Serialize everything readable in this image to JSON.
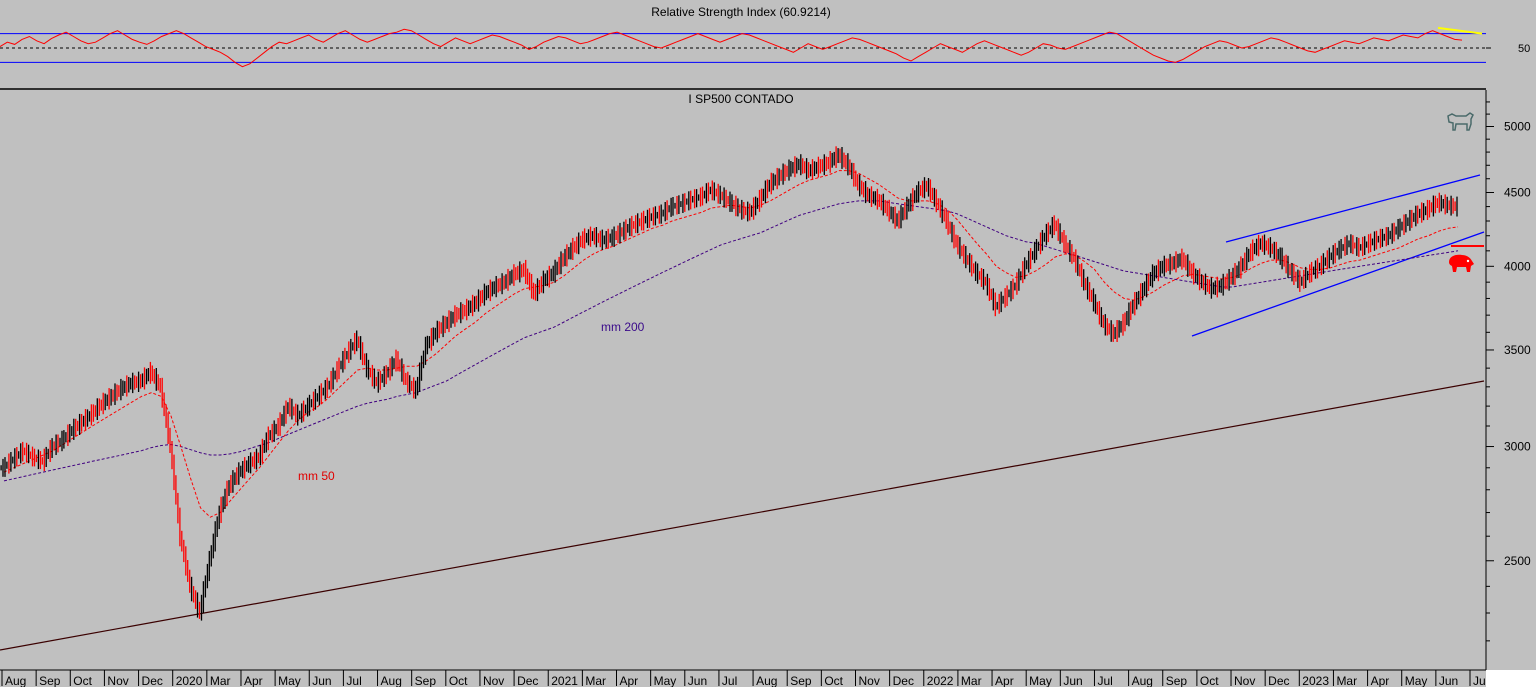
{
  "chart_data": [
    {
      "type": "line",
      "panel": "rsi",
      "title": "Relative Strength Index (60.9214)",
      "ylim": [
        0,
        100
      ],
      "reference_lines": [
        70,
        50,
        30
      ],
      "y_ticks": [
        "50"
      ],
      "series": [
        {
          "color": "#ff0000",
          "values": [
            52,
            58,
            55,
            62,
            66,
            60,
            56,
            63,
            68,
            72,
            66,
            60,
            56,
            58,
            64,
            70,
            74,
            68,
            62,
            58,
            55,
            60,
            66,
            70,
            74,
            70,
            64,
            58,
            52,
            48,
            44,
            38,
            30,
            24,
            28,
            36,
            44,
            52,
            58,
            56,
            60,
            64,
            68,
            62,
            58,
            64,
            70,
            74,
            68,
            62,
            58,
            62,
            66,
            70,
            72,
            76,
            74,
            68,
            62,
            56,
            52,
            58,
            64,
            60,
            56,
            60,
            64,
            68,
            66,
            62,
            58,
            54,
            48,
            52,
            58,
            62,
            66,
            64,
            60,
            56,
            58,
            62,
            66,
            70,
            72,
            68,
            64,
            60,
            56,
            52,
            50,
            54,
            58,
            62,
            66,
            70,
            66,
            62,
            58,
            62,
            66,
            70,
            68,
            64,
            60,
            56,
            52,
            48,
            44,
            50,
            56,
            52,
            48,
            52,
            56,
            60,
            64,
            62,
            58,
            54,
            50,
            46,
            42,
            36,
            32,
            38,
            44,
            50,
            56,
            52,
            48,
            44,
            50,
            56,
            60,
            56,
            52,
            48,
            44,
            40,
            44,
            50,
            56,
            54,
            50,
            48,
            52,
            56,
            60,
            64,
            68,
            72,
            70,
            64,
            58,
            52,
            46,
            40,
            36,
            32,
            30,
            34,
            40,
            46,
            52,
            56,
            60,
            58,
            54,
            50,
            52,
            56,
            60,
            64,
            62,
            58,
            54,
            50,
            46,
            44,
            48,
            52,
            56,
            60,
            58,
            56,
            60,
            64,
            62,
            60,
            64,
            68,
            66,
            64,
            70,
            74,
            70,
            66,
            62,
            61
          ]
        },
        {
          "name": "",
          "color": "#ffff00",
          "values": [
            78,
            70
          ]
        }
      ]
    },
    {
      "type": "line",
      "panel": "price",
      "title": "I SP500 CONTADO",
      "scale": "log",
      "ylim": [
        2100,
        5300
      ],
      "y_ticks": [
        5000,
        4500,
        4000,
        3500,
        3000,
        2500
      ],
      "x_tick_labels": [
        "Aug",
        "Sep",
        "Oct",
        "Nov",
        "Dec",
        "2020",
        "Mar",
        "Apr",
        "May",
        "Jun",
        "Jul",
        "Aug",
        "Sep",
        "Oct",
        "Nov",
        "Dec",
        "2021",
        "Mar",
        "Apr",
        "May",
        "Jun",
        "Jul",
        "Aug",
        "Sep",
        "Oct",
        "Nov",
        "Dec",
        "2022",
        "Mar",
        "Apr",
        "May",
        "Jun",
        "Jul",
        "Aug",
        "Sep",
        "Oct",
        "Nov",
        "Dec",
        "2023",
        "Mar",
        "Apr",
        "May",
        "Jun",
        "Jul"
      ],
      "annotations": [
        "mm 50",
        "mm 200"
      ],
      "series": [
        {
          "kind": "price",
          "color": "#000000",
          "down_color": "#ff0000",
          "values": [
            2900,
            2940,
            2980,
            2950,
            2930,
            3000,
            3030,
            3080,
            3120,
            3160,
            3210,
            3250,
            3290,
            3320,
            3330,
            3380,
            3300,
            3000,
            2600,
            2400,
            2300,
            2500,
            2700,
            2820,
            2880,
            2920,
            2950,
            3050,
            3100,
            3200,
            3150,
            3200,
            3250,
            3300,
            3390,
            3480,
            3560,
            3400,
            3320,
            3370,
            3450,
            3330,
            3280,
            3520,
            3600,
            3650,
            3700,
            3730,
            3770,
            3830,
            3870,
            3900,
            3950,
            3980,
            3830,
            3910,
            3960,
            4050,
            4120,
            4180,
            4200,
            4170,
            4190,
            4230,
            4270,
            4300,
            4330,
            4350,
            4400,
            4420,
            4450,
            4470,
            4520,
            4480,
            4430,
            4380,
            4360,
            4450,
            4560,
            4620,
            4670,
            4710,
            4660,
            4690,
            4720,
            4780,
            4700,
            4560,
            4480,
            4450,
            4380,
            4300,
            4400,
            4500,
            4550,
            4430,
            4300,
            4150,
            4050,
            3960,
            3900,
            3750,
            3810,
            3880,
            4000,
            4100,
            4200,
            4280,
            4150,
            4050,
            3900,
            3780,
            3650,
            3590,
            3650,
            3760,
            3850,
            3950,
            4000,
            4020,
            4050,
            3960,
            3900,
            3860,
            3880,
            3930,
            4000,
            4100,
            4150,
            4120,
            4060,
            3970,
            3900,
            3960,
            4000,
            4060,
            4110,
            4150,
            4120,
            4150,
            4180,
            4200,
            4250,
            4300,
            4350,
            4380,
            4430,
            4410,
            4400
          ]
        },
        {
          "name": "mm 50",
          "color": "#ff0000",
          "values": [
            2880,
            2900,
            2920,
            2940,
            2960,
            2980,
            3010,
            3040,
            3070,
            3100,
            3130,
            3160,
            3190,
            3220,
            3250,
            3270,
            3250,
            3150,
            3000,
            2850,
            2720,
            2680,
            2700,
            2750,
            2800,
            2850,
            2900,
            2960,
            3020,
            3080,
            3130,
            3170,
            3200,
            3240,
            3290,
            3340,
            3390,
            3400,
            3390,
            3390,
            3400,
            3410,
            3410,
            3440,
            3480,
            3530,
            3580,
            3620,
            3660,
            3710,
            3750,
            3790,
            3830,
            3860,
            3870,
            3880,
            3900,
            3940,
            3990,
            4040,
            4080,
            4110,
            4130,
            4160,
            4190,
            4220,
            4250,
            4270,
            4300,
            4320,
            4340,
            4360,
            4390,
            4400,
            4410,
            4400,
            4390,
            4410,
            4440,
            4480,
            4520,
            4560,
            4590,
            4610,
            4630,
            4660,
            4660,
            4640,
            4600,
            4560,
            4510,
            4460,
            4440,
            4440,
            4440,
            4420,
            4380,
            4310,
            4230,
            4150,
            4080,
            4000,
            3960,
            3930,
            3940,
            3970,
            4010,
            4060,
            4080,
            4070,
            4030,
            3980,
            3900,
            3840,
            3800,
            3790,
            3810,
            3840,
            3880,
            3910,
            3940,
            3950,
            3940,
            3930,
            3920,
            3930,
            3950,
            3990,
            4020,
            4040,
            4040,
            4020,
            3990,
            3980,
            3980,
            3990,
            4010,
            4030,
            4040,
            4060,
            4080,
            4100,
            4120,
            4150,
            4180,
            4200,
            4230,
            4250,
            4260
          ]
        },
        {
          "name": "mm 200",
          "color": "#400080",
          "values": [
            2840,
            2850,
            2860,
            2870,
            2880,
            2890,
            2900,
            2910,
            2920,
            2930,
            2940,
            2950,
            2960,
            2970,
            2980,
            2995,
            3005,
            3010,
            3000,
            2985,
            2970,
            2960,
            2960,
            2965,
            2975,
            2990,
            3005,
            3020,
            3040,
            3060,
            3080,
            3100,
            3120,
            3140,
            3160,
            3180,
            3200,
            3215,
            3225,
            3235,
            3250,
            3260,
            3270,
            3290,
            3310,
            3330,
            3360,
            3390,
            3420,
            3450,
            3480,
            3510,
            3540,
            3570,
            3590,
            3610,
            3630,
            3660,
            3690,
            3720,
            3750,
            3780,
            3810,
            3840,
            3870,
            3900,
            3930,
            3960,
            3990,
            4020,
            4050,
            4080,
            4110,
            4140,
            4160,
            4180,
            4200,
            4220,
            4250,
            4280,
            4310,
            4340,
            4360,
            4380,
            4400,
            4420,
            4430,
            4440,
            4440,
            4440,
            4430,
            4420,
            4410,
            4400,
            4390,
            4380,
            4370,
            4350,
            4320,
            4290,
            4260,
            4230,
            4200,
            4180,
            4160,
            4150,
            4130,
            4110,
            4090,
            4070,
            4050,
            4030,
            4010,
            3990,
            3970,
            3960,
            3950,
            3940,
            3930,
            3920,
            3910,
            3900,
            3890,
            3880,
            3870,
            3870,
            3880,
            3890,
            3900,
            3910,
            3920,
            3930,
            3940,
            3950,
            3960,
            3970,
            3980,
            3990,
            4000,
            4010,
            4020,
            4030,
            4040,
            4050,
            4060,
            4070,
            4080,
            4090,
            4100
          ]
        }
      ]
    }
  ]
}
